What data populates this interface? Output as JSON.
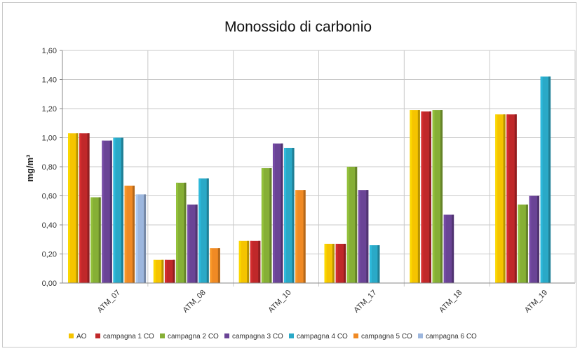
{
  "chart_data": {
    "type": "bar",
    "title": "Monossido di carbonio",
    "xlabel": "",
    "ylabel": "mg/m³",
    "ylim": [
      0,
      1.6
    ],
    "yticks": [
      "0,00",
      "0,20",
      "0,40",
      "0,60",
      "0,80",
      "1,00",
      "1,20",
      "1,40",
      "1,60"
    ],
    "grid": true,
    "legend_position": "bottom",
    "categories": [
      "ATM_07",
      "ATM_08",
      "ATM_10",
      "ATM_17",
      "ATM_18",
      "ATM_19"
    ],
    "series": [
      {
        "name": "AO",
        "color": "#F5C400",
        "values": [
          1.03,
          0.16,
          0.29,
          0.27,
          1.19,
          1.16
        ]
      },
      {
        "name": "campagna 1 CO",
        "color": "#C0282A",
        "values": [
          1.03,
          0.16,
          0.29,
          0.27,
          1.18,
          1.16
        ]
      },
      {
        "name": "campagna 2 CO",
        "color": "#86AF36",
        "values": [
          0.59,
          0.69,
          0.79,
          0.8,
          1.19,
          0.54
        ]
      },
      {
        "name": "campagna 3 CO",
        "color": "#6A4496",
        "values": [
          0.98,
          0.54,
          0.96,
          0.64,
          0.47,
          0.6
        ]
      },
      {
        "name": "campagna 4 CO",
        "color": "#2AA9C7",
        "values": [
          1.0,
          0.72,
          0.93,
          0.26,
          null,
          1.42
        ]
      },
      {
        "name": "campagna 5 CO",
        "color": "#F08A24",
        "values": [
          0.67,
          0.24,
          0.64,
          null,
          null,
          null
        ]
      },
      {
        "name": "campagna 6 CO",
        "color": "#9DB7DE",
        "values": [
          0.61,
          null,
          null,
          null,
          null,
          null
        ]
      }
    ]
  }
}
